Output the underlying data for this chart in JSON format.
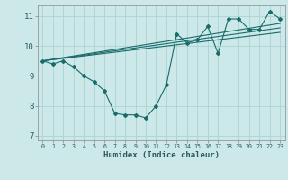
{
  "title": "",
  "xlabel": "Humidex (Indice chaleur)",
  "background_color": "#cce8e8",
  "line_color": "#1a6b6b",
  "grid_color": "#aad4d4",
  "xlim": [
    -0.5,
    23.5
  ],
  "ylim": [
    6.85,
    11.35
  ],
  "yticks": [
    7,
    8,
    9,
    10,
    11
  ],
  "xticks": [
    0,
    1,
    2,
    3,
    4,
    5,
    6,
    7,
    8,
    9,
    10,
    11,
    12,
    13,
    14,
    15,
    16,
    17,
    18,
    19,
    20,
    21,
    22,
    23
  ],
  "xtick_labels": [
    "0",
    "1",
    "2",
    "3",
    "4",
    "5",
    "6",
    "7",
    "8",
    "9",
    "10",
    "11",
    "12",
    "13",
    "14",
    "15",
    "16",
    "17",
    "18",
    "19",
    "20",
    "21",
    "22",
    "23"
  ],
  "main_line_x": [
    0,
    1,
    2,
    3,
    4,
    5,
    6,
    7,
    8,
    9,
    10,
    11,
    12,
    13,
    14,
    15,
    16,
    17,
    18,
    19,
    20,
    21,
    22,
    23
  ],
  "main_line_y": [
    9.5,
    9.4,
    9.5,
    9.3,
    9.0,
    8.8,
    8.5,
    7.75,
    7.7,
    7.7,
    7.6,
    8.0,
    8.7,
    10.4,
    10.1,
    10.2,
    10.65,
    9.75,
    10.9,
    10.9,
    10.55,
    10.55,
    11.15,
    10.9
  ],
  "trend_line1_x": [
    0,
    23
  ],
  "trend_line1_y": [
    9.5,
    10.45
  ],
  "trend_line2_x": [
    0,
    23
  ],
  "trend_line2_y": [
    9.5,
    10.6
  ],
  "trend_line3_x": [
    0,
    23
  ],
  "trend_line3_y": [
    9.5,
    10.75
  ]
}
